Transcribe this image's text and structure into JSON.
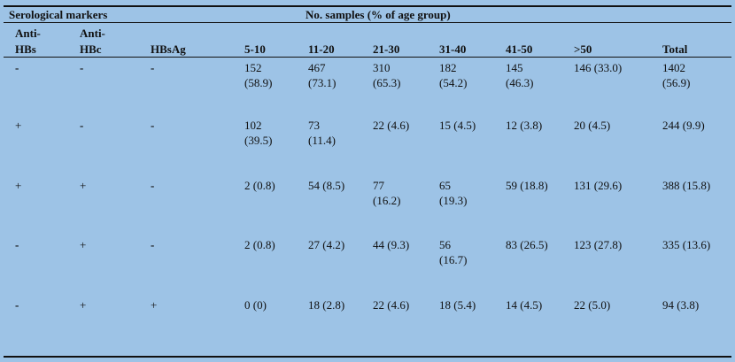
{
  "header": {
    "group1": "Serological markers",
    "group2": "No. samples (% of age group)"
  },
  "columns": [
    {
      "l1": "Anti-",
      "l2": "HBs"
    },
    {
      "l1": "Anti-",
      "l2": "HBc"
    },
    {
      "l1": "",
      "l2": "HBsAg"
    },
    {
      "l1": "",
      "l2": "5-10"
    },
    {
      "l1": "",
      "l2": "11-20"
    },
    {
      "l1": "",
      "l2": "21-30"
    },
    {
      "l1": "",
      "l2": "31-40"
    },
    {
      "l1": "",
      "l2": "41-50"
    },
    {
      "l1": "",
      "l2": ">50"
    },
    {
      "l1": "",
      "l2": "Total"
    }
  ],
  "rows": [
    [
      {
        "l1": "-",
        "l2": ""
      },
      {
        "l1": "-",
        "l2": ""
      },
      {
        "l1": "-",
        "l2": ""
      },
      {
        "l1": "152",
        "l2": "(58.9)"
      },
      {
        "l1": "467",
        "l2": "(73.1)"
      },
      {
        "l1": "310",
        "l2": "(65.3)"
      },
      {
        "l1": "182",
        "l2": "(54.2)"
      },
      {
        "l1": "145",
        "l2": "(46.3)"
      },
      {
        "l1": "146 (33.0)",
        "l2": ""
      },
      {
        "l1": "1402",
        "l2": "(56.9)"
      }
    ],
    [
      {
        "l1": "+",
        "l2": ""
      },
      {
        "l1": "-",
        "l2": ""
      },
      {
        "l1": "-",
        "l2": ""
      },
      {
        "l1": "102",
        "l2": "(39.5)"
      },
      {
        "l1": "73",
        "l2": "(11.4)"
      },
      {
        "l1": "22 (4.6)",
        "l2": ""
      },
      {
        "l1": "15 (4.5)",
        "l2": ""
      },
      {
        "l1": "12 (3.8)",
        "l2": ""
      },
      {
        "l1": "20 (4.5)",
        "l2": ""
      },
      {
        "l1": "244 (9.9)",
        "l2": ""
      }
    ],
    [
      {
        "l1": "+",
        "l2": ""
      },
      {
        "l1": "+",
        "l2": ""
      },
      {
        "l1": "-",
        "l2": ""
      },
      {
        "l1": "2 (0.8)",
        "l2": ""
      },
      {
        "l1": "54 (8.5)",
        "l2": ""
      },
      {
        "l1": "77",
        "l2": "(16.2)"
      },
      {
        "l1": "65",
        "l2": "(19.3)"
      },
      {
        "l1": "59 (18.8)",
        "l2": ""
      },
      {
        "l1": "131 (29.6)",
        "l2": ""
      },
      {
        "l1": "388 (15.8)",
        "l2": ""
      }
    ],
    [
      {
        "l1": "-",
        "l2": ""
      },
      {
        "l1": "+",
        "l2": ""
      },
      {
        "l1": "-",
        "l2": ""
      },
      {
        "l1": "2 (0.8)",
        "l2": ""
      },
      {
        "l1": "27 (4.2)",
        "l2": ""
      },
      {
        "l1": "44 (9.3)",
        "l2": ""
      },
      {
        "l1": "56",
        "l2": "(16.7)"
      },
      {
        "l1": "83 (26.5)",
        "l2": ""
      },
      {
        "l1": "123 (27.8)",
        "l2": ""
      },
      {
        "l1": "335 (13.6)",
        "l2": ""
      }
    ],
    [
      {
        "l1": "-",
        "l2": ""
      },
      {
        "l1": "+",
        "l2": ""
      },
      {
        "l1": "+",
        "l2": ""
      },
      {
        "l1": "0 (0)",
        "l2": ""
      },
      {
        "l1": "18 (2.8)",
        "l2": ""
      },
      {
        "l1": "22 (4.6)",
        "l2": ""
      },
      {
        "l1": "18 (5.4)",
        "l2": ""
      },
      {
        "l1": "14 (4.5)",
        "l2": ""
      },
      {
        "l1": "22 (5.0)",
        "l2": ""
      },
      {
        "l1": "94 (3.8)",
        "l2": ""
      }
    ]
  ]
}
